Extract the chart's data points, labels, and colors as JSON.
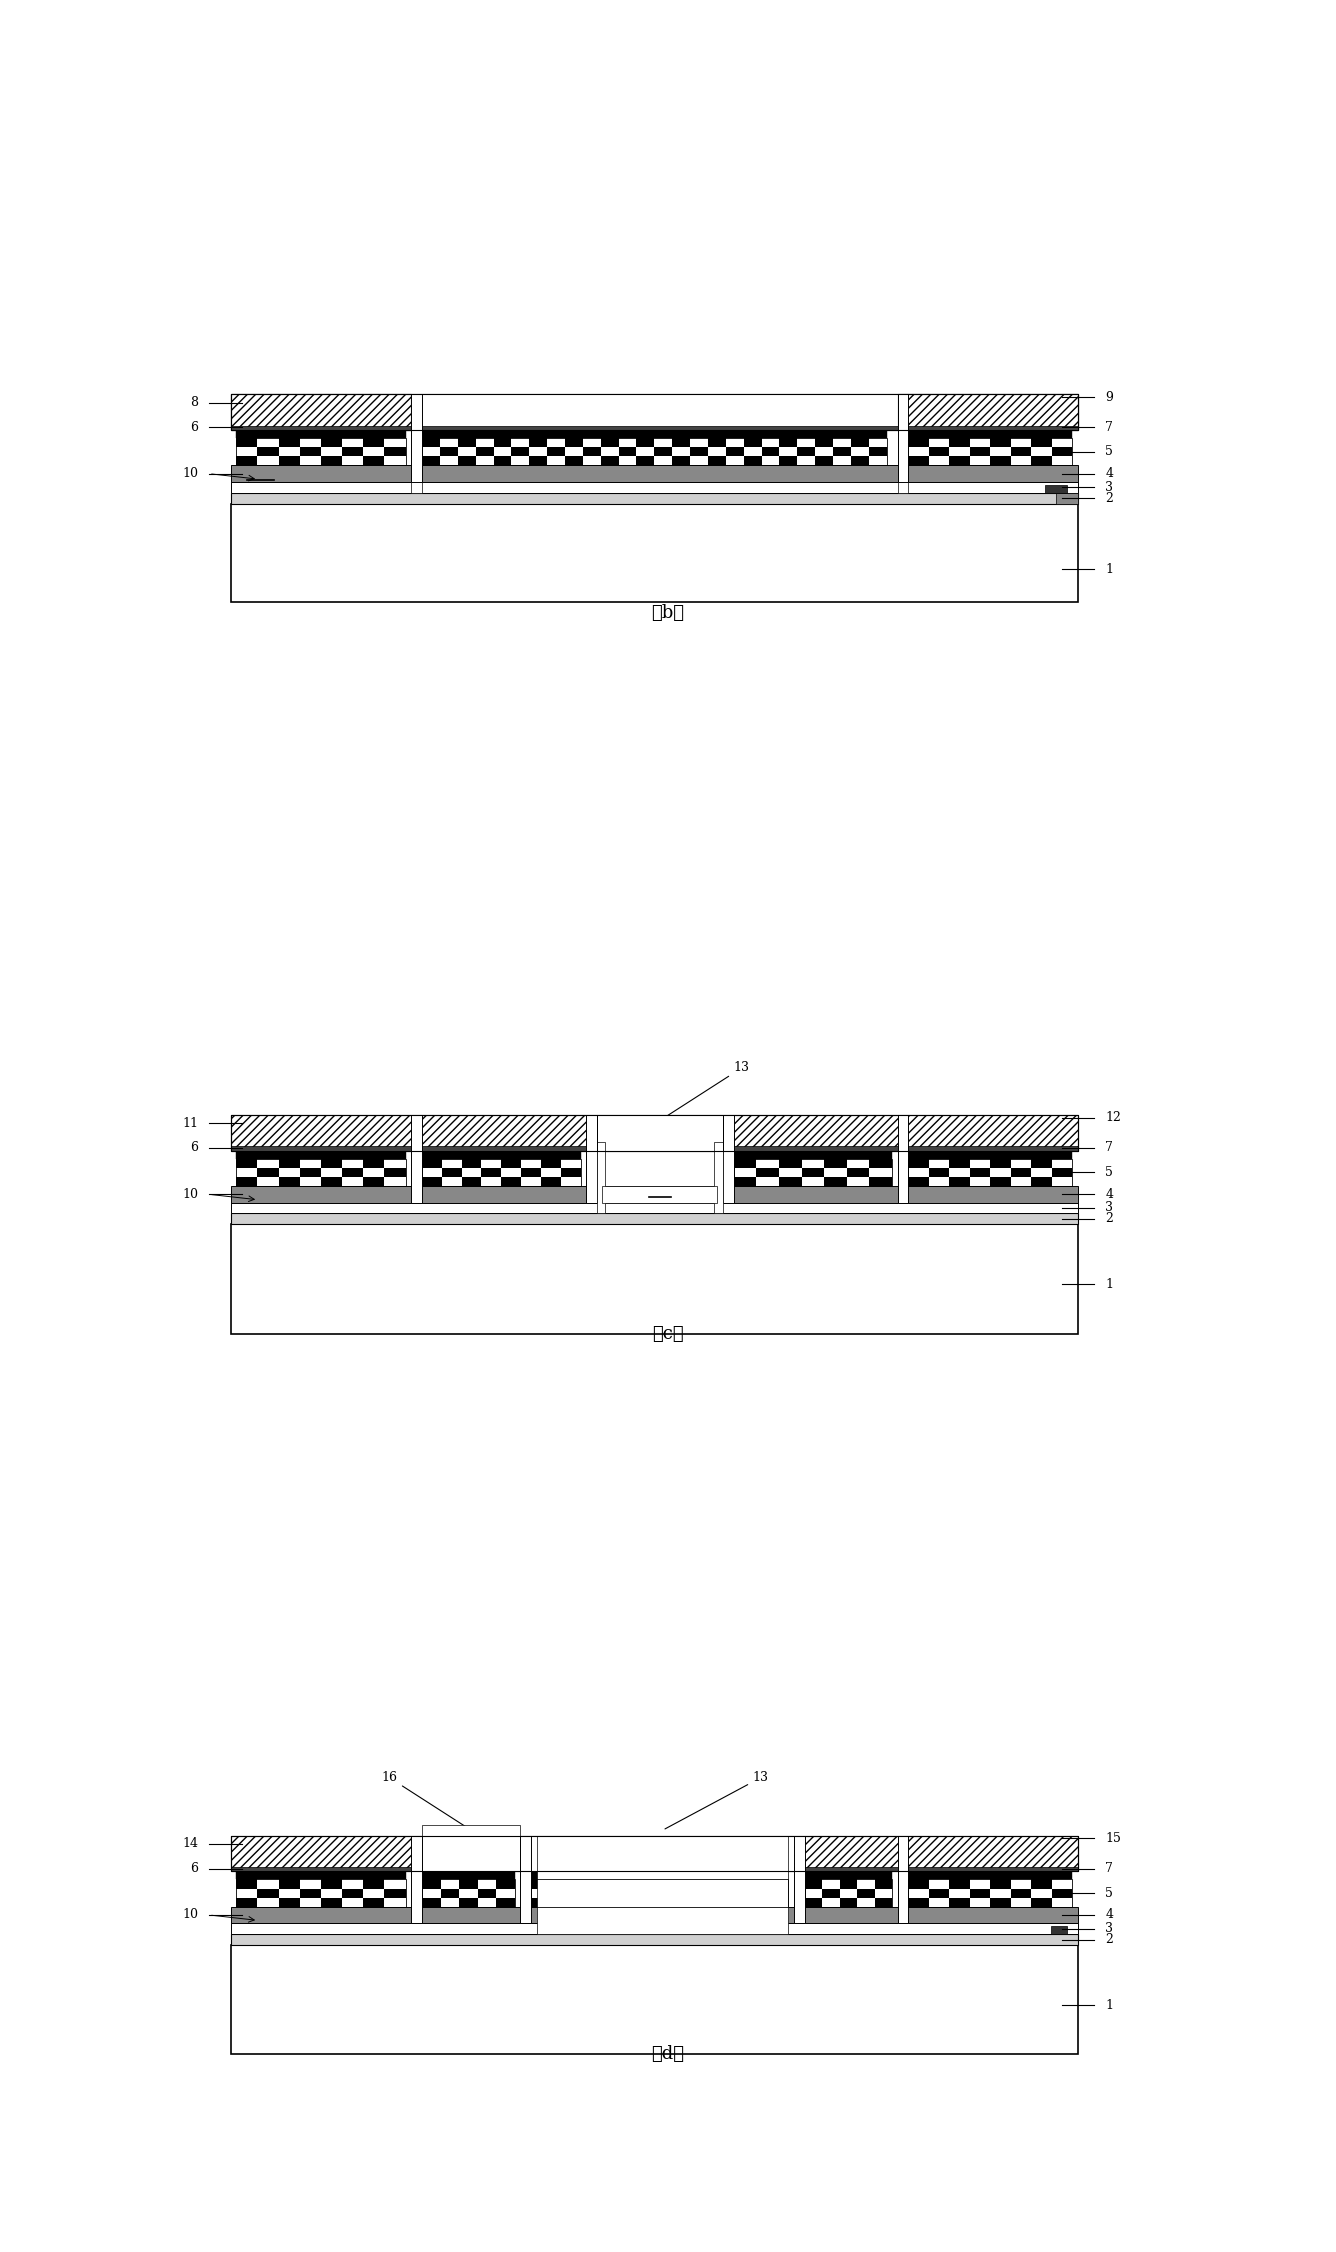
{
  "bg_color": "#ffffff",
  "fig_width": 13.36,
  "fig_height": 22.52,
  "dpi": 100,
  "panels": [
    "b",
    "c",
    "d"
  ]
}
